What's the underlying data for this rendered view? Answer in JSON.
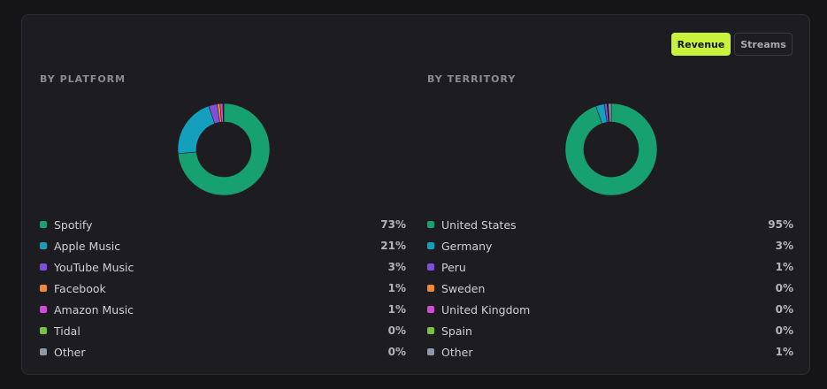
{
  "toggle": {
    "revenue_label": "Revenue",
    "streams_label": "Streams",
    "selected": "Revenue"
  },
  "platform": {
    "title": "BY PLATFORM",
    "items": [
      {
        "label": "Spotify",
        "value": "73%",
        "color": "#17a070"
      },
      {
        "label": "Apple Music",
        "value": "21%",
        "color": "#14a0bd"
      },
      {
        "label": "YouTube Music",
        "value": "3%",
        "color": "#7f4fe0"
      },
      {
        "label": "Facebook",
        "value": "1%",
        "color": "#f0883a"
      },
      {
        "label": "Amazon Music",
        "value": "1%",
        "color": "#d34ad8"
      },
      {
        "label": "Tidal",
        "value": "0%",
        "color": "#7ac142"
      },
      {
        "label": "Other",
        "value": "0%",
        "color": "#8e98a8"
      }
    ]
  },
  "territory": {
    "title": "BY TERRITORY",
    "items": [
      {
        "label": "United States",
        "value": "95%",
        "color": "#17a070"
      },
      {
        "label": "Germany",
        "value": "3%",
        "color": "#14a0bd"
      },
      {
        "label": "Peru",
        "value": "1%",
        "color": "#7f4fe0"
      },
      {
        "label": "Sweden",
        "value": "0%",
        "color": "#f0883a"
      },
      {
        "label": "United Kingdom",
        "value": "0%",
        "color": "#d34ad8"
      },
      {
        "label": "Spain",
        "value": "0%",
        "color": "#7ac142"
      },
      {
        "label": "Other",
        "value": "1%",
        "color": "#8e98a8"
      }
    ]
  },
  "chart_data": [
    {
      "type": "pie",
      "title": "BY PLATFORM",
      "categories": [
        "Spotify",
        "Apple Music",
        "YouTube Music",
        "Facebook",
        "Amazon Music",
        "Tidal",
        "Other"
      ],
      "values": [
        73,
        21,
        3,
        1,
        1,
        0,
        0
      ]
    },
    {
      "type": "pie",
      "title": "BY TERRITORY",
      "categories": [
        "United States",
        "Germany",
        "Peru",
        "Sweden",
        "United Kingdom",
        "Spain",
        "Other"
      ],
      "values": [
        95,
        3,
        1,
        0,
        0,
        0,
        1
      ]
    }
  ]
}
